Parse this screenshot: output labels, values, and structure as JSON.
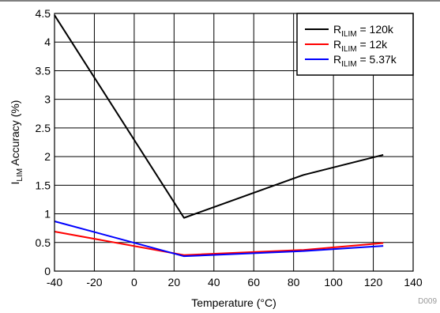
{
  "chart_data": {
    "type": "line",
    "xlabel": "Temperature (°C)",
    "ylabel_main": "I",
    "ylabel_sub": "LIM",
    "ylabel_rest": " Accuracy (%)",
    "xlim": [
      -40,
      140
    ],
    "ylim": [
      0,
      4.5
    ],
    "xticks": [
      -40,
      -20,
      0,
      20,
      40,
      60,
      80,
      100,
      120,
      140
    ],
    "yticks": [
      0,
      0.5,
      1,
      1.5,
      2,
      2.5,
      3,
      3.5,
      4,
      4.5
    ],
    "grid": true,
    "legend_position": "top-right",
    "series": [
      {
        "name_main": "R",
        "name_sub": "ILIM",
        "name_rest": " = 120k",
        "color": "#000000",
        "x": [
          -40,
          25,
          85,
          125
        ],
        "y": [
          4.47,
          0.93,
          1.68,
          2.03
        ]
      },
      {
        "name_main": "R",
        "name_sub": "ILIM",
        "name_rest": " = 12k",
        "color": "#ff0000",
        "x": [
          -40,
          25,
          85,
          125
        ],
        "y": [
          0.69,
          0.28,
          0.37,
          0.49
        ]
      },
      {
        "name_main": "R",
        "name_sub": "ILIM",
        "name_rest": " = 5.37k",
        "color": "#0000ff",
        "x": [
          -40,
          25,
          85,
          125
        ],
        "y": [
          0.87,
          0.26,
          0.35,
          0.44
        ]
      }
    ],
    "figure_id": "D009"
  }
}
